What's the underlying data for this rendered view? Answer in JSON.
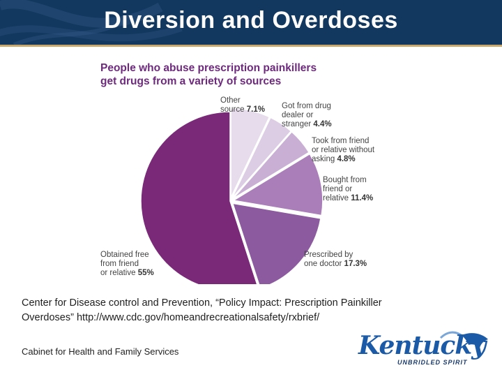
{
  "slide": {
    "title": "Diversion and Overdoses",
    "source_line1": "Center for Disease control and Prevention, “Policy Impact: Prescription Painkiller",
    "source_line2": "Overdoses” http://www.cdc.gov/homeandrecreationalsafety/rxbrief/",
    "footer": "Cabinet for Health and Family Services",
    "logo_word": "Kentucky",
    "logo_tagline": "UNBRIDLED SPIRIT"
  },
  "chart_data": {
    "type": "pie",
    "title": "People who abuse prescription painkillers",
    "subtitle": "get drugs from a variety of sources",
    "slices": [
      {
        "label_lines": [
          "Other",
          "source"
        ],
        "value": 7.1,
        "pct_text": "7.1%",
        "color": "#e6dceb"
      },
      {
        "label_lines": [
          "Got from drug",
          "dealer or",
          "stranger"
        ],
        "value": 4.4,
        "pct_text": "4.4%",
        "color": "#dccce4"
      },
      {
        "label_lines": [
          "Took from friend",
          "or relative without",
          "asking"
        ],
        "value": 4.8,
        "pct_text": "4.8%",
        "color": "#c8afd3"
      },
      {
        "label_lines": [
          "Bought from",
          "friend or",
          "relative"
        ],
        "value": 11.4,
        "pct_text": "11.4%",
        "color": "#a97eb9"
      },
      {
        "label_lines": [
          "Prescribed by",
          "one doctor"
        ],
        "value": 17.3,
        "pct_text": "17.3%",
        "color": "#8c5a9e"
      },
      {
        "label_lines": [
          "Obtained free",
          "from friend",
          "or relative"
        ],
        "value": 55,
        "pct_text": "55%",
        "color": "#7a2878"
      }
    ]
  },
  "colors": {
    "header_bg": "#13385f",
    "header_accent": "#c9a86a",
    "title_purple": "#6e2a7d"
  }
}
